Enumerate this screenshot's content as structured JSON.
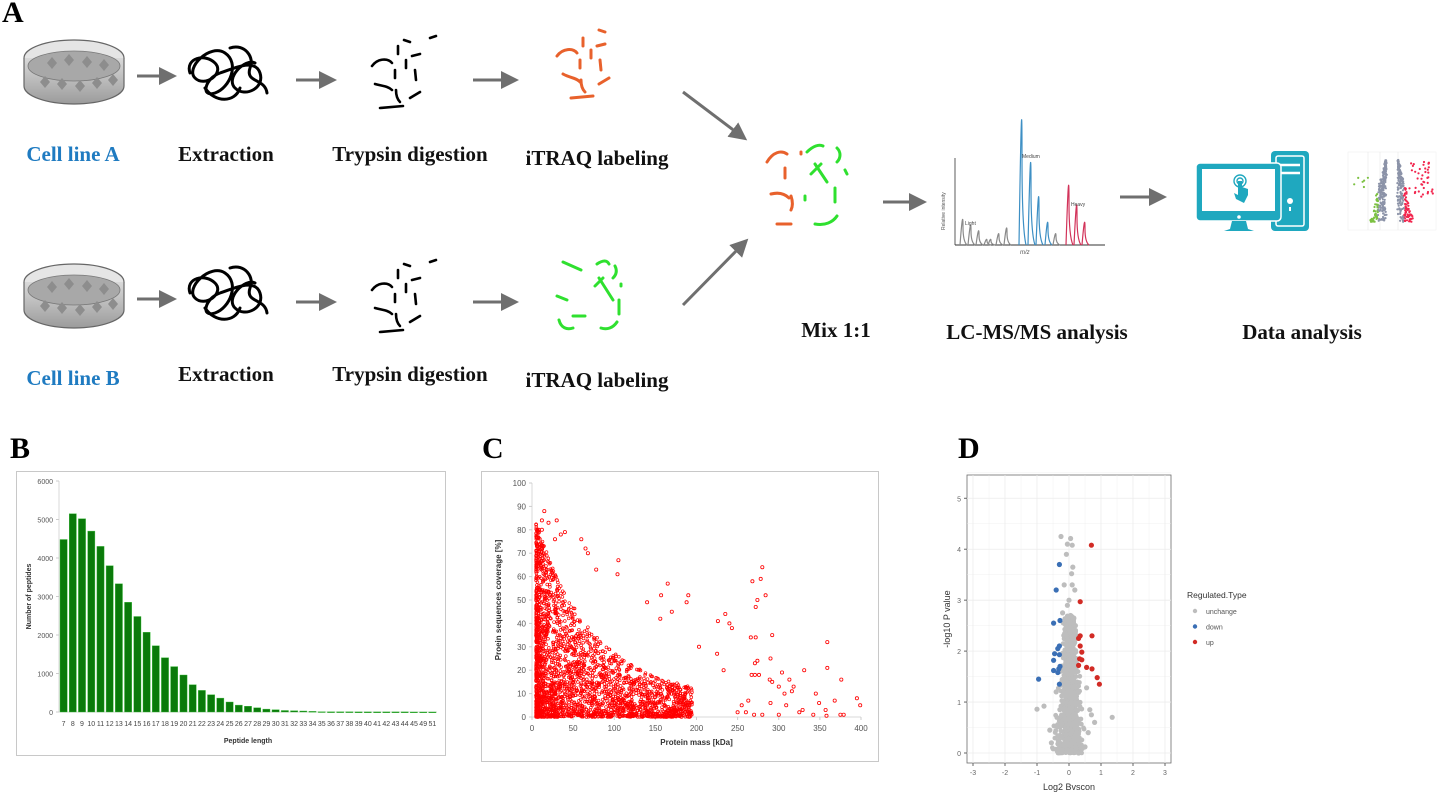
{
  "panels": {
    "a": {
      "letter": "A",
      "row_a": {
        "cell_label": "Cell line A",
        "extraction_label": "Extraction",
        "digestion_label": "Trypsin digestion",
        "labeling_label": "iTRAQ labeling",
        "label_color": "#e8612c"
      },
      "row_b": {
        "cell_label": "Cell line B",
        "extraction_label": "Extraction",
        "digestion_label": "Trypsin digestion",
        "labeling_label": "iTRAQ labeling",
        "label_color": "#2fe02f"
      },
      "mix_label": "Mix 1:1",
      "lcms_label": "LC-MS/MS analysis",
      "data_label": "Data analysis",
      "spectrum": {
        "ylabel": "Relative intensity",
        "xlabel": "m/z",
        "peak_labels": [
          "Light",
          "Medium",
          "Heavy"
        ],
        "colors": {
          "light": "#8a8a8a",
          "medium": "#3d8fc4",
          "heavy": "#d2335a"
        }
      },
      "computer_color": "#1fa8bf",
      "mini_volcano_colors": {
        "down": "#7cc142",
        "neutral": "#8c93a8",
        "up": "#f2264e"
      }
    },
    "b": {
      "letter": "B"
    },
    "c": {
      "letter": "C"
    },
    "d": {
      "letter": "D"
    }
  },
  "chart_data": [
    {
      "id": "B",
      "type": "bar",
      "title": "",
      "xlabel": "Peptide length",
      "ylabel": "Number of peptides",
      "ylim": [
        0,
        6000
      ],
      "yticks": [
        0,
        1000,
        2000,
        3000,
        4000,
        5000,
        6000
      ],
      "grid": false,
      "color": "#0a7a0a",
      "categories": [
        "7",
        "8",
        "9",
        "10",
        "11",
        "12",
        "13",
        "14",
        "15",
        "16",
        "17",
        "18",
        "19",
        "20",
        "21",
        "22",
        "23",
        "24",
        "25",
        "26",
        "27",
        "28",
        "29",
        "30",
        "31",
        "32",
        "33",
        "34",
        "35",
        "36",
        "37",
        "38",
        "39",
        "40",
        "41",
        "42",
        "43",
        "44",
        "45",
        "49",
        "51"
      ],
      "values": [
        4480,
        5150,
        5020,
        4700,
        4300,
        3800,
        3330,
        2850,
        2480,
        2070,
        1720,
        1410,
        1180,
        960,
        710,
        560,
        450,
        360,
        260,
        180,
        150,
        110,
        75,
        60,
        40,
        35,
        25,
        15,
        8,
        6,
        5,
        4,
        3,
        3,
        2,
        2,
        2,
        2,
        1,
        1,
        1
      ]
    },
    {
      "id": "C",
      "type": "scatter",
      "title": "",
      "xlabel": "Protein mass [kDa]",
      "ylabel": "Proein sequences coverage [%]",
      "xlim": [
        0,
        400
      ],
      "ylim": [
        0,
        100
      ],
      "xticks": [
        0,
        50,
        100,
        150,
        200,
        250,
        300,
        350,
        400
      ],
      "yticks": [
        0,
        10,
        20,
        30,
        40,
        50,
        60,
        70,
        80,
        90,
        100
      ],
      "grid": false,
      "color": "#ff0000",
      "marker": "open-circle",
      "outliers": [
        [
          15,
          88
        ],
        [
          12,
          84
        ],
        [
          30,
          84
        ],
        [
          20,
          83
        ],
        [
          8,
          80
        ],
        [
          12,
          80
        ],
        [
          40,
          79
        ],
        [
          35,
          78
        ],
        [
          60,
          76
        ],
        [
          28,
          76
        ],
        [
          65,
          72
        ],
        [
          68,
          70
        ],
        [
          105,
          67
        ],
        [
          78,
          63
        ],
        [
          104,
          61
        ],
        [
          165,
          57
        ],
        [
          140,
          49
        ],
        [
          280,
          64
        ],
        [
          268,
          58
        ],
        [
          278,
          59
        ],
        [
          284,
          52
        ],
        [
          272,
          47
        ],
        [
          274,
          50
        ],
        [
          190,
          52
        ],
        [
          188,
          49
        ],
        [
          157,
          52
        ],
        [
          170,
          45
        ],
        [
          235,
          44
        ],
        [
          226,
          41
        ],
        [
          240,
          40
        ],
        [
          243,
          38
        ],
        [
          156,
          42
        ],
        [
          292,
          35
        ],
        [
          266,
          34
        ],
        [
          272,
          34
        ],
        [
          359,
          32
        ],
        [
          203,
          30
        ],
        [
          225,
          27
        ],
        [
          290,
          25
        ],
        [
          274,
          24
        ],
        [
          271,
          23
        ],
        [
          331,
          20
        ],
        [
          359,
          21
        ],
        [
          304,
          19
        ],
        [
          233,
          20
        ],
        [
          267,
          18
        ],
        [
          271,
          18
        ],
        [
          276,
          18
        ],
        [
          376,
          16
        ],
        [
          289,
          16
        ],
        [
          292,
          15
        ],
        [
          313,
          16
        ],
        [
          300,
          13
        ],
        [
          318,
          13
        ],
        [
          316,
          11
        ],
        [
          307,
          10
        ],
        [
          345,
          10
        ],
        [
          395,
          8
        ],
        [
          368,
          7
        ],
        [
          349,
          6
        ],
        [
          399,
          5
        ],
        [
          290,
          6
        ],
        [
          263,
          7
        ],
        [
          309,
          5
        ],
        [
          357,
          3
        ],
        [
          329,
          3
        ],
        [
          375,
          1
        ],
        [
          379,
          1
        ],
        [
          358,
          0.5
        ],
        [
          342,
          1
        ],
        [
          325,
          2
        ],
        [
          300,
          1
        ],
        [
          280,
          1
        ],
        [
          260,
          2
        ],
        [
          250,
          2
        ],
        [
          255,
          5
        ],
        [
          270,
          1
        ]
      ],
      "dense_region": {
        "x_range": [
          5,
          200
        ],
        "y_range": [
          0,
          75
        ],
        "approx_points": 7000,
        "note": "density decreases with mass and coverage"
      }
    },
    {
      "id": "D",
      "type": "scatter",
      "title": "",
      "xlabel": "Log2 Bvscon",
      "ylabel": "-log10 P value",
      "xlim": [
        -3,
        3
      ],
      "ylim": [
        0,
        5.3
      ],
      "xticks": [
        -3,
        -2,
        -1,
        0,
        1,
        2,
        3
      ],
      "yticks": [
        0,
        1,
        2,
        3,
        4,
        5
      ],
      "grid": true,
      "legend": {
        "title": "Regulated.Type",
        "position": "right",
        "entries": [
          "unchange",
          "down",
          "up"
        ]
      },
      "series": [
        {
          "name": "unchange",
          "color": "#bdbdbd",
          "points": [
            [
              -0.25,
              4.25
            ],
            [
              0.05,
              4.21
            ],
            [
              -0.05,
              4.1
            ],
            [
              0.1,
              4.08
            ],
            [
              -0.08,
              3.9
            ],
            [
              0.12,
              3.65
            ],
            [
              0.08,
              3.52
            ],
            [
              -0.15,
              3.3
            ],
            [
              0.1,
              3.3
            ],
            [
              0.18,
              3.2
            ],
            [
              0.0,
              3.0
            ],
            [
              -0.05,
              2.9
            ],
            [
              0.05,
              2.7
            ],
            [
              -0.2,
              2.75
            ],
            [
              0.15,
              2.65
            ],
            [
              0.2,
              2.5
            ],
            [
              -0.4,
              1.2
            ],
            [
              0.55,
              1.28
            ],
            [
              -1.0,
              0.86
            ],
            [
              -0.78,
              0.92
            ],
            [
              1.35,
              0.7
            ],
            [
              0.65,
              0.85
            ],
            [
              0.7,
              0.75
            ],
            [
              0.8,
              0.6
            ],
            [
              -0.55,
              0.2
            ],
            [
              -0.3,
              0.08
            ],
            [
              0.5,
              0.12
            ],
            [
              0.3,
              0.0
            ],
            [
              -0.6,
              0.45
            ],
            [
              0.6,
              0.4
            ]
          ]
        },
        {
          "name": "down",
          "color": "#3a6fb5",
          "points": [
            [
              -0.3,
              3.7
            ],
            [
              -0.4,
              3.2
            ],
            [
              -0.28,
              2.6
            ],
            [
              -0.48,
              2.55
            ],
            [
              -0.3,
              2.1
            ],
            [
              -0.35,
              2.05
            ],
            [
              -0.45,
              1.95
            ],
            [
              -0.3,
              1.93
            ],
            [
              -0.48,
              1.82
            ],
            [
              -0.28,
              1.7
            ],
            [
              -0.32,
              1.65
            ],
            [
              -0.48,
              1.62
            ],
            [
              -0.35,
              1.58
            ],
            [
              -0.95,
              1.45
            ],
            [
              -0.3,
              1.35
            ]
          ]
        },
        {
          "name": "up",
          "color": "#d22b25",
          "points": [
            [
              0.7,
              4.08
            ],
            [
              0.35,
              2.97
            ],
            [
              0.35,
              2.3
            ],
            [
              0.72,
              2.3
            ],
            [
              0.3,
              2.25
            ],
            [
              0.35,
              2.1
            ],
            [
              0.4,
              1.98
            ],
            [
              0.33,
              1.85
            ],
            [
              0.4,
              1.83
            ],
            [
              0.3,
              1.72
            ],
            [
              0.55,
              1.68
            ],
            [
              0.72,
              1.65
            ],
            [
              0.88,
              1.48
            ],
            [
              0.95,
              1.35
            ]
          ]
        }
      ],
      "dense_region": {
        "series": "unchange",
        "x_range": [
          -0.6,
          0.6
        ],
        "y_range": [
          0,
          2.8
        ],
        "shape": "funnel narrowing with height"
      }
    }
  ]
}
